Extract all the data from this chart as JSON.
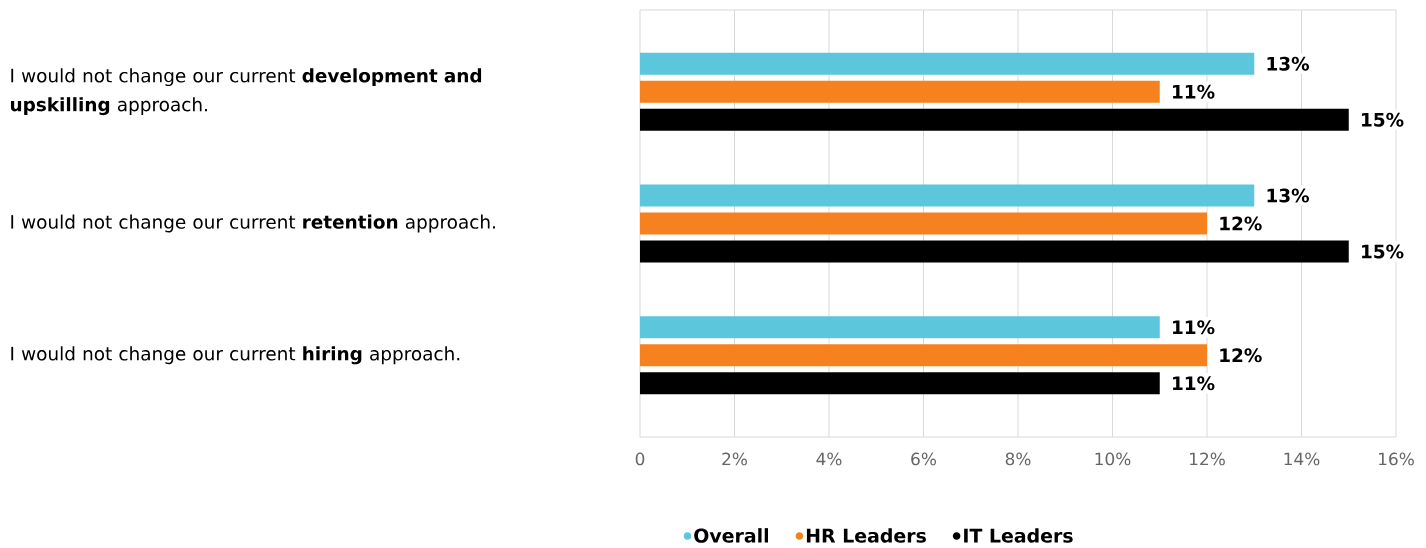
{
  "chart_data": {
    "type": "bar",
    "orientation": "horizontal",
    "categories": [
      "I would not change our current **development and upskilling** approach.",
      "I would not change our current **retention** approach.",
      "I would not change our current **hiring** approach."
    ],
    "series": [
      {
        "name": "Overall",
        "color": "#5bc6dc",
        "values": [
          13,
          13,
          11
        ],
        "value_labels": [
          "13%",
          "13%",
          "11%"
        ]
      },
      {
        "name": "HR Leaders",
        "color": "#f5821f",
        "values": [
          11,
          12,
          12
        ],
        "value_labels": [
          "11%",
          "12%",
          "12%"
        ]
      },
      {
        "name": "IT Leaders",
        "color": "#000000",
        "values": [
          15,
          15,
          11
        ],
        "value_labels": [
          "15%",
          "15%",
          "11%"
        ]
      }
    ],
    "xlim": [
      0,
      16
    ],
    "xticks": [
      0,
      {
        "value": 2,
        "label": "2%"
      },
      {
        "value": 4,
        "label": "4%"
      },
      {
        "value": 6,
        "label": "6%"
      },
      {
        "value": 8,
        "label": "8%"
      },
      {
        "value": 10,
        "label": "10%"
      },
      {
        "value": 12,
        "label": "12%"
      },
      {
        "value": 14,
        "label": "14%"
      },
      {
        "value": 16,
        "label": "16%"
      }
    ],
    "grid": "x",
    "legend": "bottom",
    "marker": "circle"
  }
}
